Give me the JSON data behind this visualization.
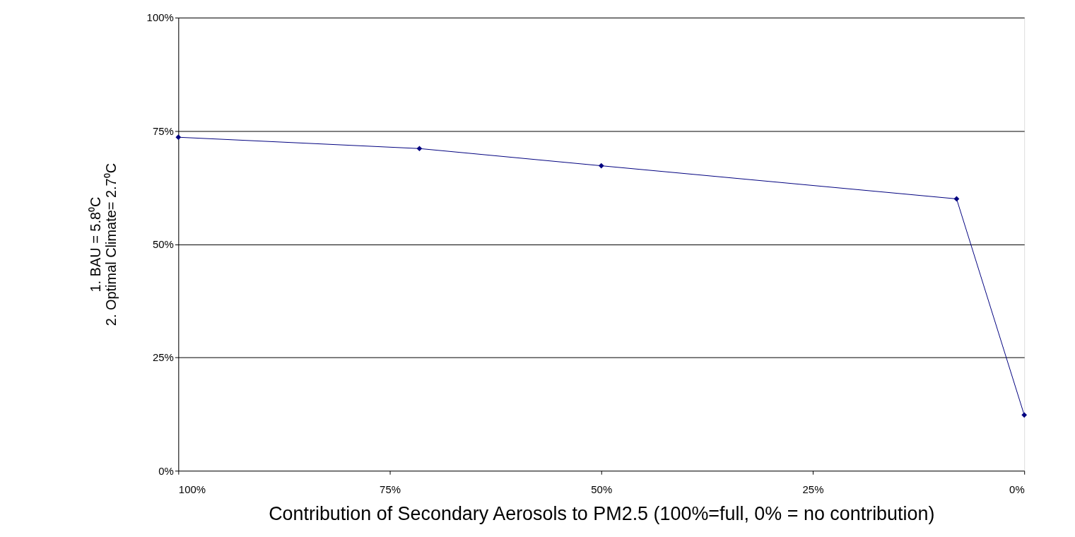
{
  "chart_data": {
    "type": "line",
    "xlabel": "Contribution of Secondary Aerosols to PM2.5 (100%=full, 0% = no contribution)",
    "ylabel": "1. BAU = 5.8⁰C\n2. Optimal Climate= 2.7⁰C",
    "x": [
      100,
      71.5,
      50,
      8,
      0
    ],
    "series": [
      {
        "color": "#000080",
        "values": [
          73.6,
          71.1,
          67.3,
          60.0,
          12.3
        ]
      }
    ],
    "xlim": [
      100,
      0
    ],
    "xticks": [
      {
        "value": 100,
        "label": "100%"
      },
      {
        "value": 75,
        "label": "75%"
      },
      {
        "value": 50,
        "label": "50%"
      },
      {
        "value": 25,
        "label": "25%"
      },
      {
        "value": 0,
        "label": "0%"
      }
    ],
    "ylim": [
      0,
      100
    ],
    "yticks": [
      {
        "value": 0,
        "label": "0%"
      },
      {
        "value": 25,
        "label": "25%"
      },
      {
        "value": 50,
        "label": "50%"
      },
      {
        "value": 75,
        "label": "75%"
      },
      {
        "value": 100,
        "label": "100%"
      }
    ],
    "grid": "y",
    "marker": "diamond",
    "line_style": "solid"
  }
}
